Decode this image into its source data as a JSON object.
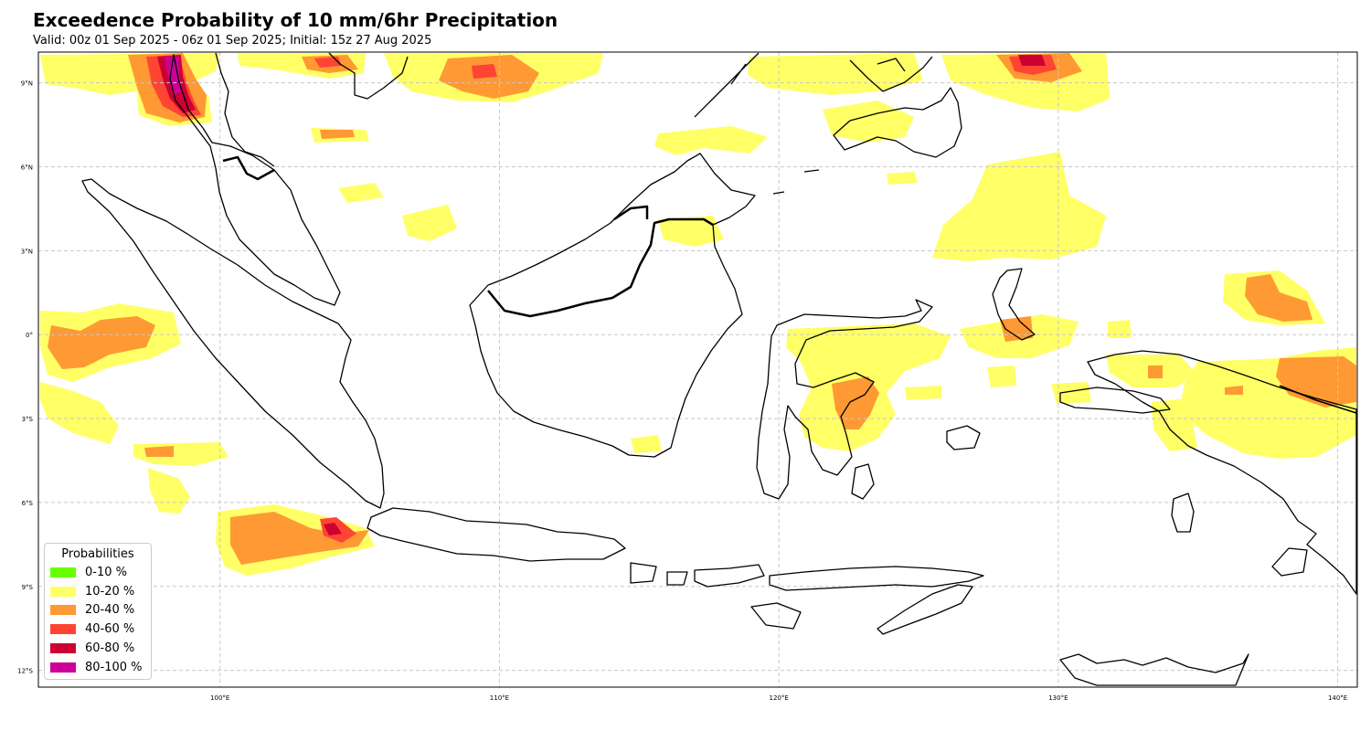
{
  "title": "Exceedence Probability of 10 mm/6hr Precipitation",
  "subtitle": "Valid: 00z 01 Sep 2025 - 06z 01 Sep 2025; Initial: 15z 27 Aug 2025",
  "map": {
    "extent": {
      "lon_min": 93.5,
      "lon_max": 140.7,
      "lat_min": -12.6,
      "lat_max": 10.1
    },
    "lon_ticks": [
      {
        "value": 100,
        "label": "100°E"
      },
      {
        "value": 110,
        "label": "110°E"
      },
      {
        "value": 120,
        "label": "120°E"
      },
      {
        "value": 130,
        "label": "130°E"
      },
      {
        "value": 140,
        "label": "140°E"
      }
    ],
    "lat_ticks": [
      {
        "value": 9,
        "label": "9°N"
      },
      {
        "value": 6,
        "label": "6°N"
      },
      {
        "value": 3,
        "label": "3°N"
      },
      {
        "value": 0,
        "label": "0°"
      },
      {
        "value": -3,
        "label": "3°S"
      },
      {
        "value": -6,
        "label": "6°S"
      },
      {
        "value": -9,
        "label": "9°S"
      },
      {
        "value": -12,
        "label": "12°S"
      }
    ],
    "grid": true
  },
  "legend": {
    "title": "Probabilities",
    "placement": "lower-left",
    "items": [
      {
        "label": "0-10 %",
        "color": "#66ff00"
      },
      {
        "label": "10-20 %",
        "color": "#ffff66"
      },
      {
        "label": "20-40 %",
        "color": "#ff9933"
      },
      {
        "label": "40-60 %",
        "color": "#ff4433"
      },
      {
        "label": "60-80 %",
        "color": "#cc0033"
      },
      {
        "label": "80-100 %",
        "color": "#cc0099"
      }
    ]
  },
  "colors": {
    "coastline": "#000000",
    "grid": "#c8c8c8"
  }
}
